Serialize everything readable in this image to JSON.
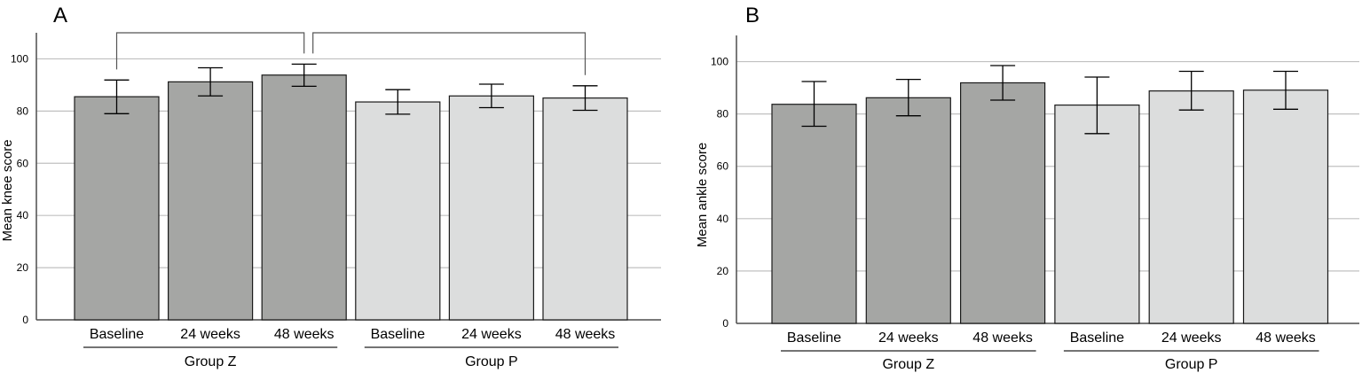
{
  "chart_data": [
    {
      "panel": "A",
      "type": "bar",
      "ylabel": "Mean knee score",
      "ylim": [
        0,
        110
      ],
      "yticks": [
        0,
        20,
        40,
        60,
        80,
        100
      ],
      "grid": true,
      "categories": [
        "Baseline",
        "24 weeks",
        "48 weeks",
        "Baseline",
        "24 weeks",
        "48 weeks"
      ],
      "groups": [
        "Group Z",
        "Group Z",
        "Group Z",
        "Group P",
        "Group P",
        "Group P"
      ],
      "group_names": [
        "Group Z",
        "Group P"
      ],
      "values": [
        85.5,
        91.2,
        93.8,
        83.5,
        85.8,
        85.0
      ],
      "error_low": [
        79.0,
        85.8,
        89.5,
        78.8,
        81.3,
        80.3
      ],
      "error_high": [
        91.9,
        96.6,
        98.0,
        88.2,
        90.3,
        89.7
      ],
      "significance_brackets": [
        [
          0,
          2
        ],
        [
          2,
          5
        ]
      ]
    },
    {
      "panel": "B",
      "type": "bar",
      "ylabel": "Mean ankle score",
      "ylim": [
        0,
        110
      ],
      "yticks": [
        0,
        20,
        40,
        60,
        80,
        100
      ],
      "grid": true,
      "categories": [
        "Baseline",
        "24 weeks",
        "48 weeks",
        "Baseline",
        "24 weeks",
        "48 weeks"
      ],
      "groups": [
        "Group Z",
        "Group Z",
        "Group Z",
        "Group P",
        "Group P",
        "Group P"
      ],
      "group_names": [
        "Group Z",
        "Group P"
      ],
      "values": [
        83.7,
        86.2,
        91.9,
        83.4,
        88.8,
        89.1
      ],
      "error_low": [
        75.3,
        79.3,
        85.3,
        72.5,
        81.5,
        81.8
      ],
      "error_high": [
        92.4,
        93.2,
        98.5,
        94.1,
        96.3,
        96.3
      ],
      "significance_brackets": []
    }
  ],
  "colors": {
    "group_z_fill": "#a5a6a4",
    "group_p_fill": "#dcdddd",
    "grid": "#c0c0c0",
    "axis": "#4d4d4d",
    "bar_stroke": "#1a1a1a"
  }
}
